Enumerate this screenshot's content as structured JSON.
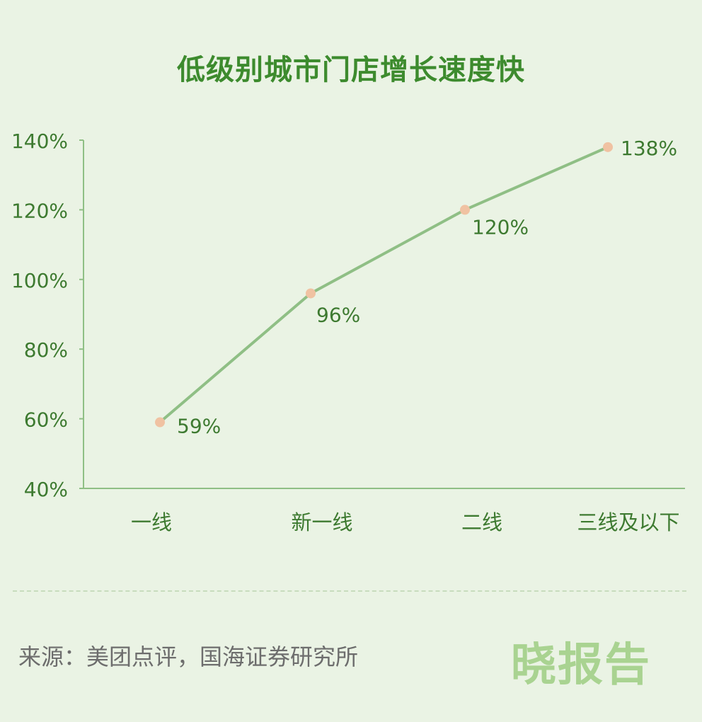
{
  "chart_data": {
    "type": "line",
    "title": "低级别城市门店增长速度快",
    "categories": [
      "一线",
      "新一线",
      "二线",
      "三线及以下"
    ],
    "values": [
      59,
      96,
      120,
      138
    ],
    "data_labels": [
      "59%",
      "96%",
      "120%",
      "138%"
    ],
    "y_ticks": [
      "40%",
      "60%",
      "80%",
      "100%",
      "120%",
      "140%"
    ],
    "y_tick_values": [
      40,
      60,
      80,
      100,
      120,
      140
    ],
    "ylim": [
      40,
      140
    ],
    "grid": false,
    "colors": {
      "line": "#8fbf85",
      "marker": "#f0c2a2",
      "axis": "#8fbf85",
      "text": "#3d7a30",
      "title": "#3d8b2e"
    }
  },
  "footer": {
    "source": "来源：美团点评，国海证券研究所",
    "brand": "晓报告"
  }
}
